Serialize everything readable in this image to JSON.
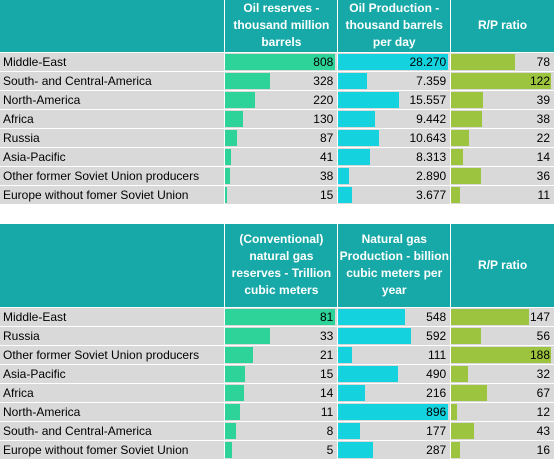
{
  "oil": {
    "headers": {
      "reserves": "Oil reserves - thousand million barrels",
      "production": "Oil Production - thousand barrels per day",
      "rp": "R/P ratio"
    },
    "rows": [
      {
        "region": "Middle-East",
        "reserves": "808",
        "production": "28.270",
        "rp": "78"
      },
      {
        "region": "South- and Central-America",
        "reserves": "328",
        "production": "7.359",
        "rp": "122"
      },
      {
        "region": "North-America",
        "reserves": "220",
        "production": "15.557",
        "rp": "39"
      },
      {
        "region": "Africa",
        "reserves": "130",
        "production": "9.442",
        "rp": "38"
      },
      {
        "region": "Russia",
        "reserves": "87",
        "production": "10.643",
        "rp": "22"
      },
      {
        "region": "Asia-Pacific",
        "reserves": "41",
        "production": "8.313",
        "rp": "14"
      },
      {
        "region": "Other former Soviet Union producers",
        "reserves": "38",
        "production": "2.890",
        "rp": "36"
      },
      {
        "region": "Europe without fomer Soviet Union",
        "reserves": "15",
        "production": "3.677",
        "rp": "11"
      }
    ],
    "bars": {
      "reserves": [
        1.0,
        0.406,
        0.272,
        0.161,
        0.108,
        0.051,
        0.047,
        0.019
      ],
      "production": [
        1.0,
        0.26,
        0.55,
        0.334,
        0.376,
        0.294,
        0.102,
        0.13
      ],
      "rp": [
        0.639,
        1.0,
        0.32,
        0.311,
        0.18,
        0.115,
        0.295,
        0.09
      ]
    }
  },
  "gas": {
    "headers": {
      "reserves": "(Conventional) natural gas reserves - Trillion cubic meters",
      "production": "Natural gas Production - billion cubic meters per year",
      "rp": "R/P ratio"
    },
    "rows": [
      {
        "region": "Middle-East",
        "reserves": "81",
        "production": "548",
        "rp": "147"
      },
      {
        "region": "Russia",
        "reserves": "33",
        "production": "592",
        "rp": "56"
      },
      {
        "region": "Other former Soviet Union producers",
        "reserves": "21",
        "production": "111",
        "rp": "188"
      },
      {
        "region": "Asia-Pacific",
        "reserves": "15",
        "production": "490",
        "rp": "32"
      },
      {
        "region": "Africa",
        "reserves": "14",
        "production": "216",
        "rp": "67"
      },
      {
        "region": "North-America",
        "reserves": "11",
        "production": "896",
        "rp": "12"
      },
      {
        "region": "South- and Central-America",
        "reserves": "8",
        "production": "177",
        "rp": "43"
      },
      {
        "region": "Europe without fomer Soviet Union",
        "reserves": "5",
        "production": "287",
        "rp": "16"
      }
    ],
    "bars": {
      "reserves": [
        1.0,
        0.407,
        0.259,
        0.185,
        0.173,
        0.136,
        0.099,
        0.062
      ],
      "production": [
        0.612,
        0.661,
        0.124,
        0.547,
        0.241,
        1.0,
        0.198,
        0.32
      ],
      "rp": [
        0.782,
        0.298,
        1.0,
        0.17,
        0.356,
        0.064,
        0.229,
        0.085
      ]
    }
  },
  "colors": {
    "header_bg": "#17a8a8",
    "cell_bg": "#d9d9d9",
    "reserves_bar": "#2ed39a",
    "production_bar": "#14d3de",
    "rp_bar": "#9dc43f"
  }
}
